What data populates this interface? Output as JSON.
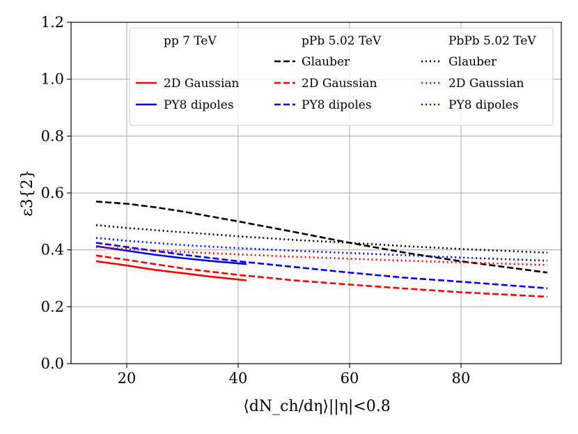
{
  "chart_data": {
    "type": "line",
    "title": "",
    "xlabel": "⟨dN_ch/dη⟩||η|<0.8",
    "ylabel": "ε3{2}",
    "xlim": [
      10,
      98
    ],
    "ylim": [
      0.0,
      1.2
    ],
    "xticks": [
      20,
      40,
      60,
      80
    ],
    "yticks": [
      0.0,
      0.2,
      0.4,
      0.6,
      0.8,
      1.0,
      1.2
    ],
    "ytick_labels": [
      "0.0",
      "0.2",
      "0.4",
      "0.6",
      "0.8",
      "1.0",
      "1.2"
    ],
    "grid": true,
    "legend_position": "top-right",
    "legend": {
      "groups": [
        "pp 7 TeV",
        "pPb 5.02 TeV",
        "PbPb 5.02 TeV"
      ],
      "entries": [
        "Glauber",
        "2D Gaussian",
        "PY8 dipoles"
      ]
    },
    "series": [
      {
        "name": "2D Gaussian",
        "group": "pp 7 TeV",
        "color": "#ff0000",
        "style": "solid",
        "x": [
          14.5,
          20,
          25,
          30,
          35,
          41.5
        ],
        "y": [
          0.36,
          0.345,
          0.33,
          0.318,
          0.306,
          0.293
        ]
      },
      {
        "name": "PY8 dipoles",
        "group": "pp 7 TeV",
        "color": "#0000ff",
        "style": "solid",
        "x": [
          14.5,
          20,
          25,
          30,
          35,
          41.5
        ],
        "y": [
          0.413,
          0.397,
          0.383,
          0.371,
          0.361,
          0.35
        ]
      },
      {
        "name": "Glauber",
        "group": "pPb 5.02 TeV",
        "color": "#000000",
        "style": "dashed",
        "x": [
          14.5,
          20,
          25,
          30,
          40,
          50,
          60,
          70,
          80,
          95.5
        ],
        "y": [
          0.57,
          0.562,
          0.55,
          0.535,
          0.5,
          0.463,
          0.425,
          0.39,
          0.36,
          0.32
        ]
      },
      {
        "name": "2D Gaussian",
        "group": "pPb 5.02 TeV",
        "color": "#ff0000",
        "style": "dashed",
        "x": [
          14.5,
          20,
          30,
          40,
          50,
          60,
          70,
          80,
          95.5
        ],
        "y": [
          0.38,
          0.365,
          0.335,
          0.312,
          0.293,
          0.278,
          0.264,
          0.251,
          0.235
        ]
      },
      {
        "name": "PY8 dipoles",
        "group": "pPb 5.02 TeV",
        "color": "#0000ff",
        "style": "dashed",
        "x": [
          14.5,
          20,
          30,
          40,
          50,
          60,
          70,
          80,
          95.5
        ],
        "y": [
          0.425,
          0.41,
          0.383,
          0.36,
          0.34,
          0.32,
          0.302,
          0.288,
          0.265
        ]
      },
      {
        "name": "Glauber",
        "group": "PbPb 5.02 TeV",
        "color": "#000000",
        "style": "dotted",
        "x": [
          14.5,
          20,
          30,
          40,
          50,
          60,
          70,
          80,
          95.5
        ],
        "y": [
          0.487,
          0.477,
          0.462,
          0.448,
          0.435,
          0.425,
          0.413,
          0.403,
          0.39
        ]
      },
      {
        "name": "2D Gaussian",
        "group": "PbPb 5.02 TeV",
        "color": "#ff0000",
        "style": "dotted",
        "x": [
          14.5,
          20,
          30,
          40,
          50,
          60,
          70,
          80,
          95.5
        ],
        "y": [
          0.41,
          0.403,
          0.393,
          0.384,
          0.376,
          0.369,
          0.362,
          0.356,
          0.347
        ]
      },
      {
        "name": "PY8 dipoles",
        "group": "PbPb 5.02 TeV",
        "color": "#0000ff",
        "style": "dotted",
        "x": [
          14.5,
          20,
          30,
          40,
          50,
          60,
          70,
          80,
          95.5
        ],
        "y": [
          0.442,
          0.432,
          0.417,
          0.406,
          0.397,
          0.389,
          0.381,
          0.373,
          0.362
        ]
      }
    ]
  }
}
